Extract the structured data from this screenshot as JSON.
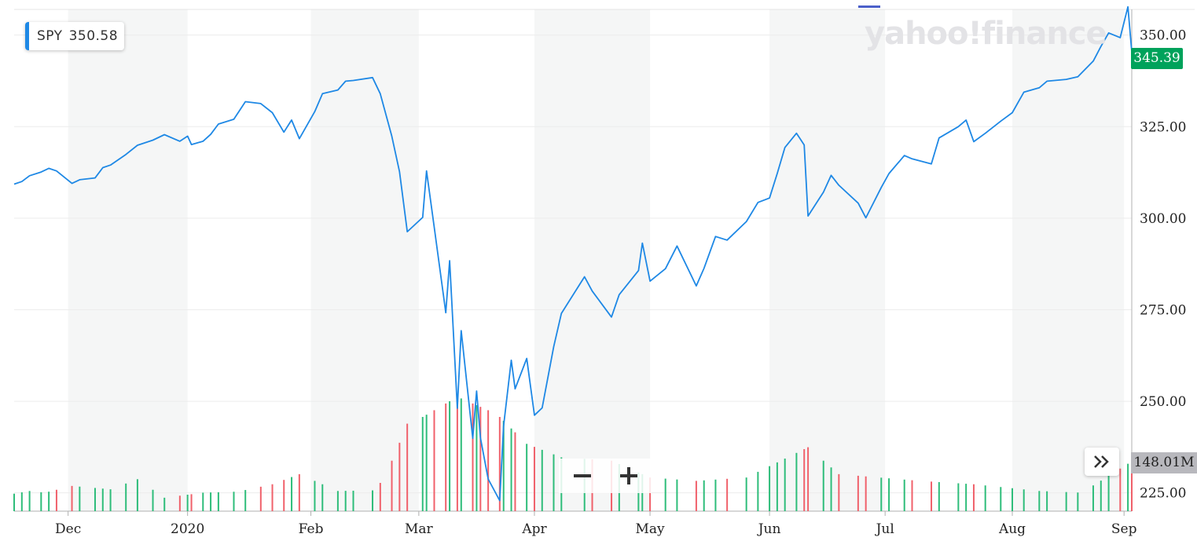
{
  "ticker": {
    "symbol": "SPY",
    "value": "350.58"
  },
  "logo_text": "yahoo!finance",
  "price_tag": "345.39",
  "volume_tag": "148.01M",
  "icons": {
    "expand": "double-chevron-right-icon",
    "zoom_out": "minus-icon",
    "zoom_in": "plus-icon"
  },
  "colors": {
    "line": "#1e88e5",
    "up_volume": "#2ebd7a",
    "down_volume": "#f0616b",
    "price_tag_bg": "#00a25b",
    "volume_tag_bg": "#b8b8bd",
    "shade": "#f5f6f6",
    "chip_accent": "#1e88e5",
    "top_marker": "#4b5fc9"
  },
  "chart_data": {
    "type": "line",
    "x_type": "date",
    "ylim": [
      220,
      357
    ],
    "y_ticks": [
      225,
      250,
      275,
      300,
      325,
      350
    ],
    "y_tick_labels": [
      "225.00",
      "250.00",
      "275.00",
      "300.00",
      "325.00",
      "350.00"
    ],
    "x_ticks": [
      {
        "label": "Dec",
        "date": "2019-12-02"
      },
      {
        "label": "2020",
        "date": "2020-01-02"
      },
      {
        "label": "Feb",
        "date": "2020-02-03"
      },
      {
        "label": "Mar",
        "date": "2020-03-02"
      },
      {
        "label": "Apr",
        "date": "2020-04-01"
      },
      {
        "label": "May",
        "date": "2020-05-01"
      },
      {
        "label": "Jun",
        "date": "2020-06-01"
      },
      {
        "label": "Jul",
        "date": "2020-07-01"
      },
      {
        "label": "Aug",
        "date": "2020-08-03"
      },
      {
        "label": "Sep",
        "date": "2020-09-01"
      }
    ],
    "series": [
      {
        "points": [
          [
            "2019-11-18",
            309.3
          ],
          [
            "2019-11-20",
            310.0
          ],
          [
            "2019-11-22",
            311.6
          ],
          [
            "2019-11-25",
            312.6
          ],
          [
            "2019-11-27",
            313.6
          ],
          [
            "2019-11-29",
            312.9
          ],
          [
            "2019-12-03",
            309.5
          ],
          [
            "2019-12-05",
            310.5
          ],
          [
            "2019-12-09",
            311.0
          ],
          [
            "2019-12-11",
            313.8
          ],
          [
            "2019-12-13",
            314.5
          ],
          [
            "2019-12-17",
            317.4
          ],
          [
            "2019-12-20",
            319.9
          ],
          [
            "2019-12-24",
            321.3
          ],
          [
            "2019-12-27",
            322.8
          ],
          [
            "2019-12-31",
            321.0
          ],
          [
            "2020-01-02",
            322.4
          ],
          [
            "2020-01-03",
            320.1
          ],
          [
            "2020-01-06",
            321.0
          ],
          [
            "2020-01-08",
            322.9
          ],
          [
            "2020-01-10",
            325.7
          ],
          [
            "2020-01-14",
            327.0
          ],
          [
            "2020-01-17",
            331.8
          ],
          [
            "2020-01-21",
            331.3
          ],
          [
            "2020-01-24",
            328.8
          ],
          [
            "2020-01-27",
            323.5
          ],
          [
            "2020-01-29",
            326.8
          ],
          [
            "2020-01-31",
            321.7
          ],
          [
            "2020-02-04",
            329.1
          ],
          [
            "2020-02-06",
            334.0
          ],
          [
            "2020-02-10",
            335.0
          ],
          [
            "2020-02-12",
            337.4
          ],
          [
            "2020-02-14",
            337.6
          ],
          [
            "2020-02-19",
            338.4
          ],
          [
            "2020-02-21",
            334.0
          ],
          [
            "2020-02-24",
            322.4
          ],
          [
            "2020-02-26",
            312.7
          ],
          [
            "2020-02-28",
            296.3
          ],
          [
            "2020-03-03",
            300.2
          ],
          [
            "2020-03-04",
            312.9
          ],
          [
            "2020-03-06",
            297.5
          ],
          [
            "2020-03-09",
            274.2
          ],
          [
            "2020-03-10",
            288.4
          ],
          [
            "2020-03-12",
            248.1
          ],
          [
            "2020-03-13",
            269.3
          ],
          [
            "2020-03-16",
            239.9
          ],
          [
            "2020-03-17",
            252.8
          ],
          [
            "2020-03-18",
            240.0
          ],
          [
            "2020-03-20",
            228.8
          ],
          [
            "2020-03-23",
            222.9
          ],
          [
            "2020-03-24",
            243.2
          ],
          [
            "2020-03-26",
            261.2
          ],
          [
            "2020-03-27",
            253.4
          ],
          [
            "2020-03-30",
            261.7
          ],
          [
            "2020-04-01",
            246.2
          ],
          [
            "2020-04-03",
            248.2
          ],
          [
            "2020-04-06",
            264.9
          ],
          [
            "2020-04-08",
            274.0
          ],
          [
            "2020-04-14",
            284.0
          ],
          [
            "2020-04-16",
            280.1
          ],
          [
            "2020-04-21",
            273.0
          ],
          [
            "2020-04-23",
            279.1
          ],
          [
            "2020-04-28",
            285.7
          ],
          [
            "2020-04-29",
            293.2
          ],
          [
            "2020-05-01",
            282.8
          ],
          [
            "2020-05-05",
            286.2
          ],
          [
            "2020-05-08",
            292.4
          ],
          [
            "2020-05-13",
            281.5
          ],
          [
            "2020-05-15",
            286.3
          ],
          [
            "2020-05-18",
            295.0
          ],
          [
            "2020-05-21",
            294.0
          ],
          [
            "2020-05-26",
            299.1
          ],
          [
            "2020-05-29",
            304.3
          ],
          [
            "2020-06-01",
            305.5
          ],
          [
            "2020-06-03",
            312.2
          ],
          [
            "2020-06-05",
            319.3
          ],
          [
            "2020-06-08",
            323.2
          ],
          [
            "2020-06-10",
            320.0
          ],
          [
            "2020-06-11",
            300.6
          ],
          [
            "2020-06-15",
            307.1
          ],
          [
            "2020-06-17",
            311.7
          ],
          [
            "2020-06-19",
            309.0
          ],
          [
            "2020-06-24",
            304.1
          ],
          [
            "2020-06-26",
            300.1
          ],
          [
            "2020-06-30",
            308.4
          ],
          [
            "2020-07-02",
            312.2
          ],
          [
            "2020-07-06",
            317.1
          ],
          [
            "2020-07-08",
            316.2
          ],
          [
            "2020-07-13",
            314.8
          ],
          [
            "2020-07-15",
            321.9
          ],
          [
            "2020-07-20",
            325.0
          ],
          [
            "2020-07-22",
            326.8
          ],
          [
            "2020-07-24",
            320.9
          ],
          [
            "2020-07-27",
            323.2
          ],
          [
            "2020-07-31",
            326.5
          ],
          [
            "2020-08-03",
            328.8
          ],
          [
            "2020-08-06",
            334.4
          ],
          [
            "2020-08-10",
            335.6
          ],
          [
            "2020-08-12",
            337.4
          ],
          [
            "2020-08-17",
            337.9
          ],
          [
            "2020-08-20",
            338.6
          ],
          [
            "2020-08-24",
            342.9
          ],
          [
            "2020-08-26",
            346.9
          ],
          [
            "2020-08-28",
            350.6
          ],
          [
            "2020-08-31",
            349.3
          ],
          [
            "2020-09-02",
            357.7
          ],
          [
            "2020-09-03",
            345.4
          ]
        ]
      }
    ],
    "volume_series": [
      {
        "date": "2019-11-18",
        "volume_m": 52
      },
      {
        "date": "2019-11-22",
        "volume_m": 60
      },
      {
        "date": "2019-11-26",
        "volume_m": 55
      },
      {
        "date": "2019-12-03",
        "volume_m": 75
      },
      {
        "date": "2019-12-13",
        "volume_m": 65
      },
      {
        "date": "2019-12-20",
        "volume_m": 95
      },
      {
        "date": "2019-12-27",
        "volume_m": 40
      },
      {
        "date": "2020-01-06",
        "volume_m": 55
      },
      {
        "date": "2020-01-15",
        "volume_m": 58
      },
      {
        "date": "2020-01-24",
        "volume_m": 80
      },
      {
        "date": "2020-01-31",
        "volume_m": 110
      },
      {
        "date": "2020-02-10",
        "volume_m": 60
      },
      {
        "date": "2020-02-20",
        "volume_m": 62
      },
      {
        "date": "2020-02-24",
        "volume_m": 150
      },
      {
        "date": "2020-02-27",
        "volume_m": 230
      },
      {
        "date": "2020-02-28",
        "volume_m": 260
      },
      {
        "date": "2020-03-02",
        "volume_m": 230
      },
      {
        "date": "2020-03-03",
        "volume_m": 280
      },
      {
        "date": "2020-03-09",
        "volume_m": 320
      },
      {
        "date": "2020-03-12",
        "volume_m": 340
      },
      {
        "date": "2020-03-16",
        "volume_m": 320
      },
      {
        "date": "2020-03-20",
        "volume_m": 300
      },
      {
        "date": "2020-03-23",
        "volume_m": 280
      },
      {
        "date": "2020-03-30",
        "volume_m": 200
      },
      {
        "date": "2020-04-08",
        "volume_m": 160
      },
      {
        "date": "2020-04-21",
        "volume_m": 150
      },
      {
        "date": "2020-05-01",
        "volume_m": 100
      },
      {
        "date": "2020-05-13",
        "volume_m": 90
      },
      {
        "date": "2020-05-26",
        "volume_m": 100
      },
      {
        "date": "2020-06-11",
        "volume_m": 190
      },
      {
        "date": "2020-06-19",
        "volume_m": 110
      },
      {
        "date": "2020-07-10",
        "volume_m": 90
      },
      {
        "date": "2020-07-24",
        "volume_m": 80
      },
      {
        "date": "2020-08-10",
        "volume_m": 60
      },
      {
        "date": "2020-08-21",
        "volume_m": 55
      },
      {
        "date": "2020-09-03",
        "volume_m": 148.01
      }
    ]
  }
}
